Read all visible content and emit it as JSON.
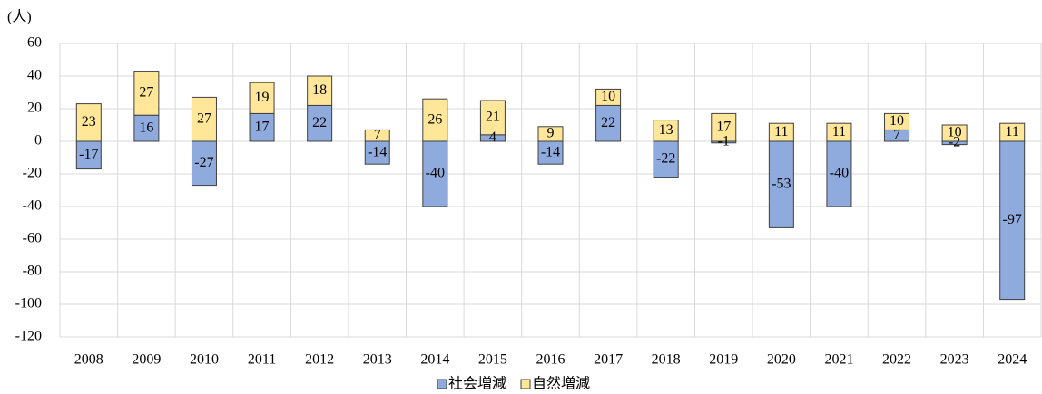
{
  "chart_data": {
    "type": "bar",
    "stacked": true,
    "y_label": "(人)",
    "categories": [
      "2008",
      "2009",
      "2010",
      "2011",
      "2012",
      "2013",
      "2014",
      "2015",
      "2016",
      "2017",
      "2018",
      "2019",
      "2020",
      "2021",
      "2022",
      "2023",
      "2024"
    ],
    "series": [
      {
        "name": "社会増減",
        "color": "#8faadc",
        "values": [
          -17,
          16,
          -27,
          17,
          22,
          -14,
          -40,
          4,
          -14,
          22,
          -22,
          -1,
          -53,
          -40,
          7,
          -2,
          -97
        ]
      },
      {
        "name": "自然増減",
        "color": "#ffe699",
        "values": [
          23,
          27,
          27,
          19,
          18,
          7,
          26,
          21,
          9,
          10,
          13,
          17,
          11,
          11,
          10,
          10,
          11
        ]
      }
    ],
    "ylim": [
      -120,
      60
    ],
    "yticks": [
      -120,
      -100,
      -80,
      -60,
      -40,
      -20,
      0,
      20,
      40,
      60
    ],
    "grid": true,
    "legend": "bottom"
  }
}
